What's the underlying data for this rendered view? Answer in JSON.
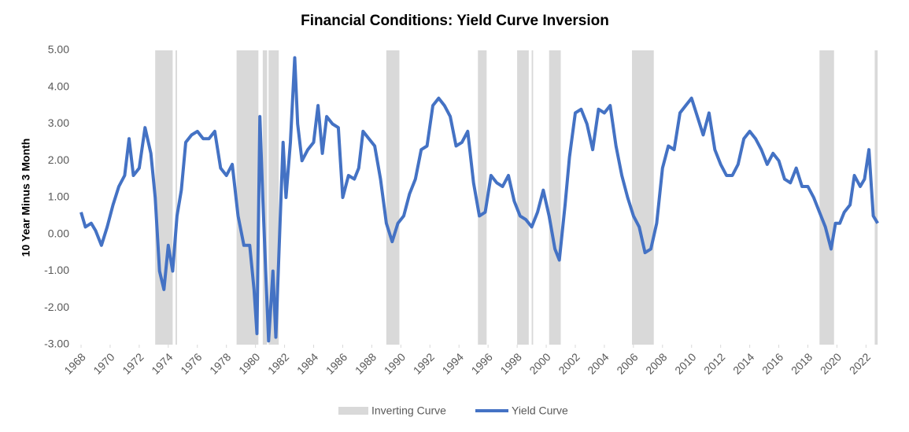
{
  "chart_data": {
    "type": "line",
    "title": "Financial Conditions: Yield Curve Inversion",
    "y_label": "10 Year Minus 3 Month",
    "xlim": [
      1968,
      2022.9
    ],
    "xticks": [
      1968,
      1970,
      1972,
      1974,
      1976,
      1978,
      1980,
      1982,
      1984,
      1986,
      1988,
      1990,
      1992,
      1994,
      1996,
      1998,
      2000,
      2002,
      2004,
      2006,
      2008,
      2010,
      2012,
      2014,
      2016,
      2018,
      2020,
      2022
    ],
    "ylim": [
      -3,
      5
    ],
    "yticks": [
      {
        "value": 5,
        "label": "5.00"
      },
      {
        "value": 4,
        "label": "4.00"
      },
      {
        "value": 3,
        "label": "3.00"
      },
      {
        "value": 2,
        "label": "2.00"
      },
      {
        "value": 1,
        "label": "1.00"
      },
      {
        "value": 0,
        "label": "0.00"
      },
      {
        "value": -1,
        "label": "-1.00"
      },
      {
        "value": -2,
        "label": "-2.00"
      },
      {
        "value": -3,
        "label": "-3.00"
      }
    ],
    "inverting": {
      "name": "Inverting Curve",
      "color": "#d9d9d9",
      "periods": [
        [
          1973.1,
          1974.3
        ],
        [
          1974.5,
          1974.6
        ],
        [
          1978.7,
          1980.2
        ],
        [
          1980.5,
          1980.8
        ],
        [
          1980.9,
          1981.6
        ],
        [
          1989.0,
          1989.9
        ],
        [
          1995.3,
          1995.9
        ],
        [
          1998.0,
          1998.8
        ],
        [
          1999.0,
          1999.1
        ],
        [
          2000.2,
          2001.0
        ],
        [
          2005.9,
          2007.4
        ],
        [
          2018.8,
          2019.8
        ],
        [
          2022.6,
          2022.8
        ]
      ]
    },
    "x": [
      1968.0,
      1968.3,
      1968.7,
      1969.0,
      1969.4,
      1969.8,
      1970.2,
      1970.6,
      1971.0,
      1971.3,
      1971.6,
      1972.0,
      1972.4,
      1972.8,
      1973.1,
      1973.4,
      1973.7,
      1974.0,
      1974.3,
      1974.6,
      1974.9,
      1975.2,
      1975.6,
      1976.0,
      1976.4,
      1976.8,
      1977.2,
      1977.6,
      1978.0,
      1978.4,
      1978.8,
      1979.2,
      1979.6,
      1979.9,
      1980.1,
      1980.3,
      1980.5,
      1980.7,
      1980.9,
      1981.2,
      1981.4,
      1981.7,
      1981.9,
      1982.1,
      1982.4,
      1982.7,
      1982.9,
      1983.2,
      1983.6,
      1984.0,
      1984.3,
      1984.6,
      1984.9,
      1985.3,
      1985.7,
      1986.0,
      1986.4,
      1986.8,
      1987.1,
      1987.4,
      1987.8,
      1988.2,
      1988.6,
      1989.0,
      1989.4,
      1989.8,
      1990.2,
      1990.6,
      1991.0,
      1991.4,
      1991.8,
      1992.2,
      1992.6,
      1993.0,
      1993.4,
      1993.8,
      1994.2,
      1994.6,
      1995.0,
      1995.4,
      1995.8,
      1996.2,
      1996.6,
      1997.0,
      1997.4,
      1997.8,
      1998.2,
      1998.6,
      1999.0,
      1999.4,
      1999.8,
      2000.2,
      2000.6,
      2000.9,
      2001.3,
      2001.6,
      2002.0,
      2002.4,
      2002.8,
      2003.2,
      2003.6,
      2004.0,
      2004.4,
      2004.8,
      2005.2,
      2005.6,
      2006.0,
      2006.4,
      2006.8,
      2007.2,
      2007.6,
      2008.0,
      2008.4,
      2008.8,
      2009.2,
      2009.6,
      2010.0,
      2010.4,
      2010.8,
      2011.2,
      2011.6,
      2012.0,
      2012.4,
      2012.8,
      2013.2,
      2013.6,
      2014.0,
      2014.4,
      2014.8,
      2015.2,
      2015.6,
      2016.0,
      2016.4,
      2016.8,
      2017.2,
      2017.6,
      2018.0,
      2018.4,
      2018.8,
      2019.2,
      2019.6,
      2019.9,
      2020.2,
      2020.5,
      2020.9,
      2021.2,
      2021.6,
      2021.9,
      2022.2,
      2022.5,
      2022.8
    ],
    "series": [
      {
        "name": "Yield Curve",
        "color": "#4472c4",
        "values": [
          0.6,
          0.2,
          0.3,
          0.1,
          -0.3,
          0.2,
          0.8,
          1.3,
          1.6,
          2.6,
          1.6,
          1.8,
          2.9,
          2.2,
          1.0,
          -1.0,
          -1.5,
          -0.3,
          -1.0,
          0.5,
          1.2,
          2.5,
          2.7,
          2.8,
          2.6,
          2.6,
          2.8,
          1.8,
          1.6,
          1.9,
          0.5,
          -0.3,
          -0.3,
          -1.5,
          -2.7,
          3.2,
          1.0,
          -1.0,
          -2.9,
          -1.0,
          -2.8,
          0.4,
          2.5,
          1.0,
          2.5,
          4.8,
          3.0,
          2.0,
          2.3,
          2.5,
          3.5,
          2.2,
          3.2,
          3.0,
          2.9,
          1.0,
          1.6,
          1.5,
          1.8,
          2.8,
          2.6,
          2.4,
          1.5,
          0.3,
          -0.2,
          0.3,
          0.5,
          1.1,
          1.5,
          2.3,
          2.4,
          3.5,
          3.7,
          3.5,
          3.2,
          2.4,
          2.5,
          2.8,
          1.4,
          0.5,
          0.6,
          1.6,
          1.4,
          1.3,
          1.6,
          0.9,
          0.5,
          0.4,
          0.2,
          0.6,
          1.2,
          0.5,
          -0.4,
          -0.7,
          0.8,
          2.1,
          3.3,
          3.4,
          3.0,
          2.3,
          3.4,
          3.3,
          3.5,
          2.4,
          1.6,
          1.0,
          0.5,
          0.2,
          -0.5,
          -0.4,
          0.3,
          1.8,
          2.4,
          2.3,
          3.3,
          3.5,
          3.7,
          3.2,
          2.7,
          3.3,
          2.3,
          1.9,
          1.6,
          1.6,
          1.9,
          2.6,
          2.8,
          2.6,
          2.3,
          1.9,
          2.2,
          2.0,
          1.5,
          1.4,
          1.8,
          1.3,
          1.3,
          1.0,
          0.6,
          0.2,
          -0.4,
          0.3,
          0.3,
          0.6,
          0.8,
          1.6,
          1.3,
          1.5,
          2.3,
          0.5,
          0.3
        ]
      }
    ]
  }
}
